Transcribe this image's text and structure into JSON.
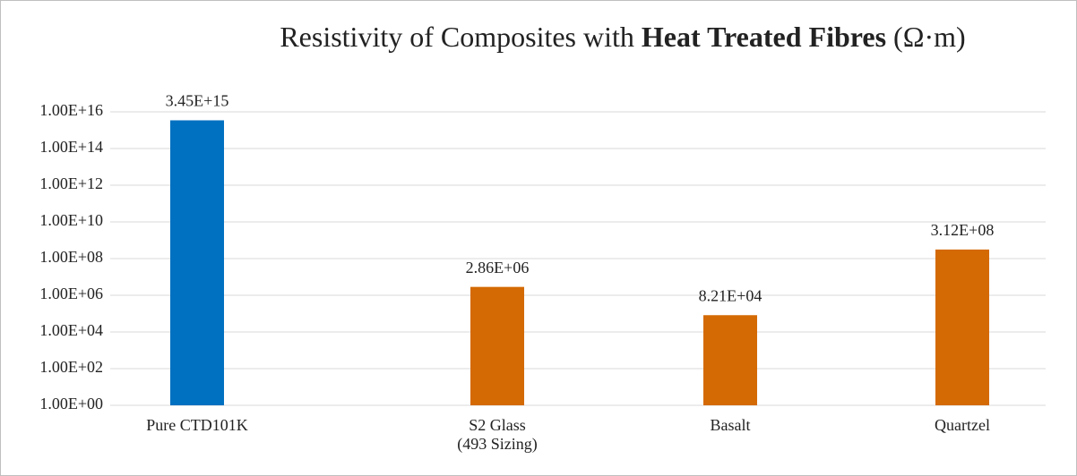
{
  "chart_data": {
    "type": "bar",
    "title": [
      "Resistivity of Composites with ",
      "Heat Treated Fibres",
      " (Ω·m)"
    ],
    "categories": [
      [
        "Pure CTD101K"
      ],
      [
        "S2 Glass",
        "(493 Sizing)"
      ],
      [
        "Basalt"
      ],
      [
        "Quartzel"
      ]
    ],
    "values": [
      3450000000000000.0,
      2860000.0,
      82100.0,
      312000000.0
    ],
    "value_labels": [
      "3.45E+15",
      "2.86E+06",
      "8.21E+04",
      "3.12E+08"
    ],
    "colors": [
      "#0070c0",
      "#d46a04",
      "#d46a04",
      "#d46a04"
    ],
    "log_scale": true,
    "ylim": [
      1,
      1e+16
    ],
    "yticks": [
      {
        "value": 1,
        "label": "1.00E+00"
      },
      {
        "value": 100,
        "label": "1.00E+02"
      },
      {
        "value": 10000,
        "label": "1.00E+04"
      },
      {
        "value": 1000000,
        "label": "1.00E+06"
      },
      {
        "value": 100000000,
        "label": "1.00E+08"
      },
      {
        "value": 10000000000,
        "label": "1.00E+10"
      },
      {
        "value": 1000000000000,
        "label": "1.00E+12"
      },
      {
        "value": 100000000000000,
        "label": "1.00E+14"
      },
      {
        "value": 10000000000000000,
        "label": "1.00E+16"
      }
    ],
    "grid": true
  }
}
